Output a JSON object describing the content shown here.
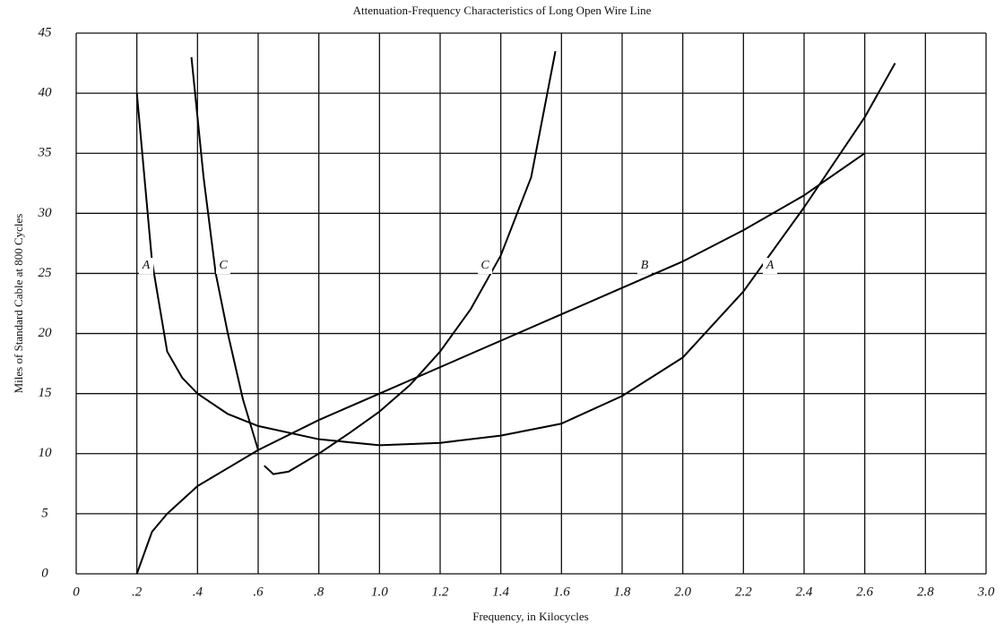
{
  "chart_data": {
    "type": "line",
    "title": "Attenuation-Frequency Characteristics of Long Open Wire Line",
    "xlabel": "Frequency, in Kilocycles",
    "ylabel": "Miles of Standard Cable at 800 Cycles",
    "xlim": [
      0,
      3.0
    ],
    "ylim": [
      0,
      45
    ],
    "xticks": [
      0,
      {
        "value": 0.2,
        "label": ".2"
      },
      {
        "value": 0.4,
        "label": ".4"
      },
      {
        "value": 0.6,
        "label": ".6"
      },
      {
        "value": 0.8,
        "label": ".8"
      },
      {
        "value": 1.0,
        "label": "1.0"
      },
      1.2,
      1.4,
      1.6,
      1.8,
      {
        "value": 2.0,
        "label": "2.0"
      },
      2.2,
      2.4,
      2.6,
      2.8,
      {
        "value": 3.0,
        "label": "3.0"
      }
    ],
    "yticks": [
      0,
      5,
      10,
      15,
      20,
      25,
      30,
      35,
      40,
      45
    ],
    "grid": true,
    "series": [
      {
        "name": "A",
        "color": "#000000",
        "x": [
          0.2,
          0.25,
          0.3,
          0.35,
          0.4,
          0.5,
          0.6,
          0.8,
          1.0,
          1.2,
          1.4,
          1.6,
          1.8,
          2.0,
          2.2,
          2.4,
          2.6,
          2.7
        ],
        "values": [
          40,
          26,
          18.5,
          16.3,
          15,
          13.3,
          12.3,
          11.2,
          10.7,
          10.9,
          11.5,
          12.5,
          14.8,
          18,
          23.5,
          30.5,
          38,
          42.5
        ]
      },
      {
        "name": "B",
        "color": "#000000",
        "x": [
          0.2,
          0.25,
          0.3,
          0.4,
          0.6,
          0.8,
          1.0,
          1.2,
          1.4,
          1.6,
          1.8,
          2.0,
          2.2,
          2.4,
          2.6
        ],
        "values": [
          0,
          3.5,
          5,
          7.3,
          10.3,
          12.8,
          15,
          17.2,
          19.4,
          21.6,
          23.8,
          26,
          28.6,
          31.5,
          35
        ]
      },
      {
        "name": "C",
        "color": "#000000",
        "x": [
          0.38,
          0.42,
          0.46,
          0.5,
          0.55,
          0.6,
          null,
          0.62,
          0.65,
          0.7,
          0.8,
          0.9,
          1.0,
          1.1,
          1.2,
          1.3,
          1.4,
          1.5,
          1.58
        ],
        "values": [
          43,
          33,
          25,
          20,
          14.5,
          10.3,
          null,
          9,
          8.3,
          8.5,
          10,
          11.7,
          13.5,
          15.7,
          18.5,
          22,
          26.5,
          33,
          43.5
        ]
      }
    ]
  }
}
